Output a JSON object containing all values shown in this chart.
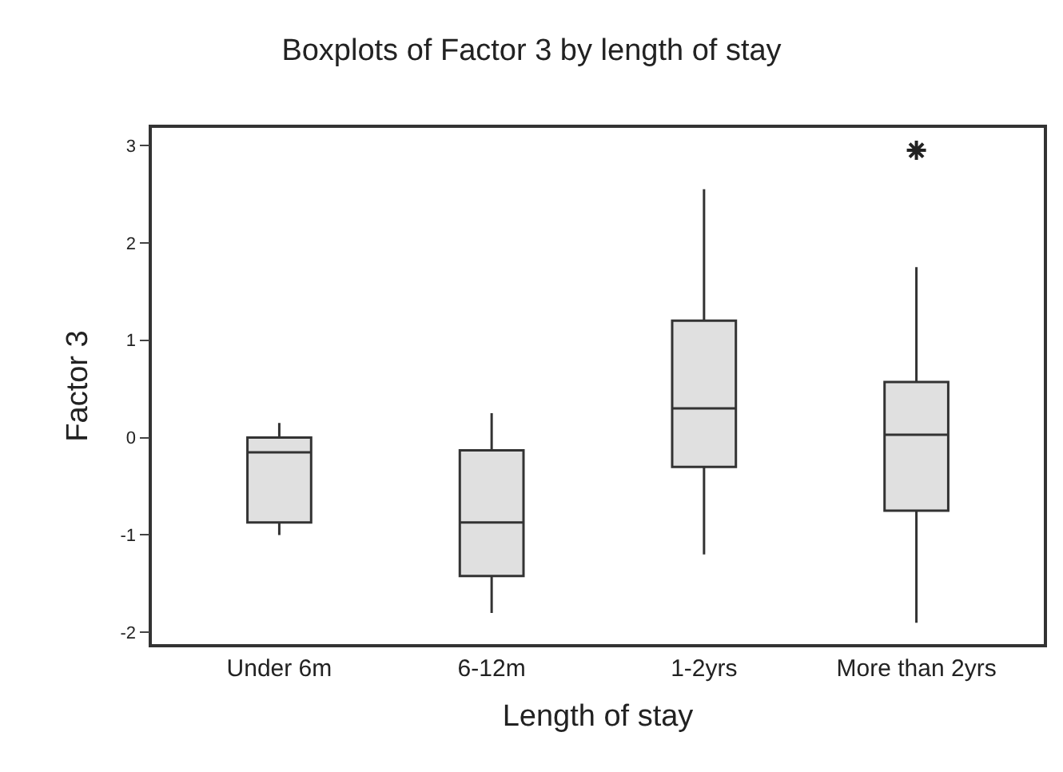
{
  "chart_data": {
    "type": "box",
    "title": "Boxplots of Factor 3 by length of stay",
    "xlabel": "Length of stay",
    "ylabel": "Factor 3",
    "categories": [
      "Under 6m",
      "6-12m",
      "1-2yrs",
      "More than 2yrs"
    ],
    "boxes": [
      {
        "low": -1.0,
        "q1": -0.87,
        "median": -0.15,
        "q3": 0.0,
        "high": 0.15
      },
      {
        "low": -1.8,
        "q1": -1.42,
        "median": -0.87,
        "q3": -0.13,
        "high": 0.25
      },
      {
        "low": -1.2,
        "q1": -0.3,
        "median": 0.3,
        "q3": 1.2,
        "high": 2.55
      },
      {
        "low": -1.9,
        "q1": -0.75,
        "median": 0.03,
        "q3": 0.57,
        "high": 1.75,
        "outliers": [
          2.95
        ]
      }
    ],
    "color": "#e0e0e0",
    "ylim": [
      -2.12,
      3.18
    ],
    "yticks": [
      -2,
      -1,
      0,
      1,
      2,
      3
    ],
    "marker": "cross"
  }
}
